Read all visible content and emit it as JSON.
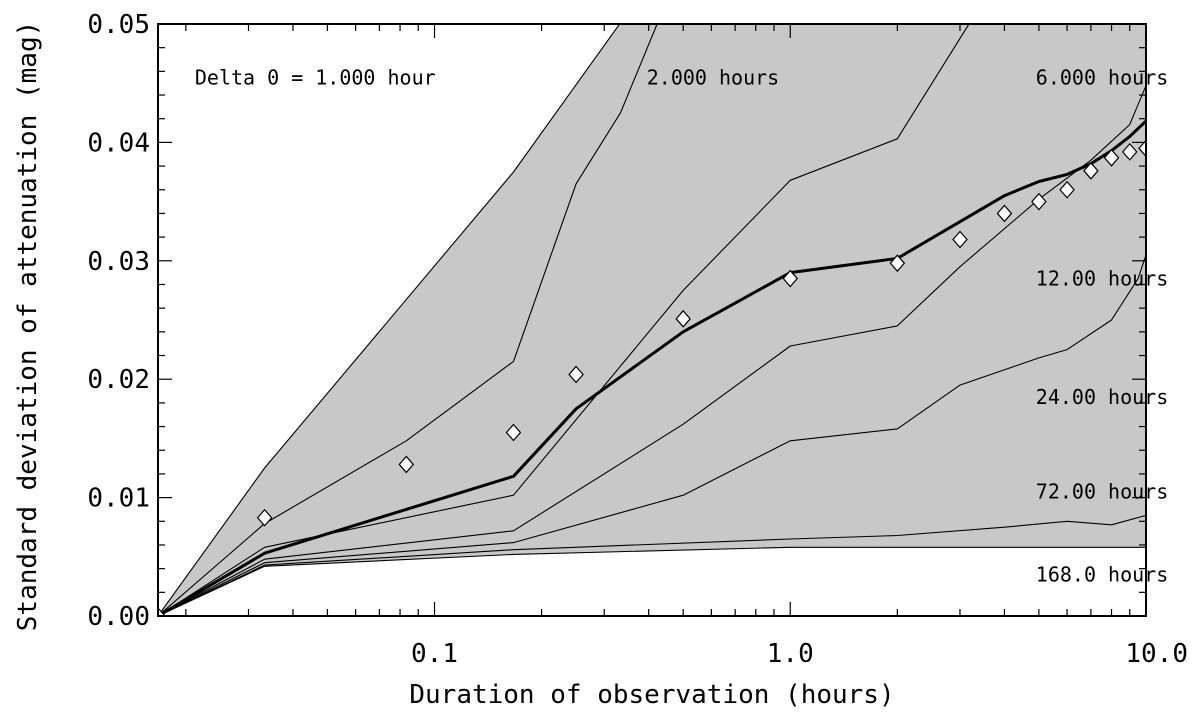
{
  "chart_data": {
    "type": "line",
    "xscale": "log",
    "xlim": [
      0.0167,
      10.0
    ],
    "ylim": [
      0.0,
      0.05
    ],
    "xlabel": "Duration of observation (hours)",
    "ylabel": "Standard deviation of attenuation (mag)",
    "grid": false,
    "x_ticks": [
      {
        "value": 0.1,
        "label": "0.1"
      },
      {
        "value": 1.0,
        "label": "1.0"
      },
      {
        "value": 10.0,
        "label": "10.0"
      }
    ],
    "y_ticks": [
      {
        "value": 0.0,
        "label": "0.00"
      },
      {
        "value": 0.01,
        "label": "0.01"
      },
      {
        "value": 0.02,
        "label": "0.02"
      },
      {
        "value": 0.03,
        "label": "0.03"
      },
      {
        "value": 0.04,
        "label": "0.04"
      },
      {
        "value": 0.05,
        "label": "0.05"
      }
    ],
    "shaded_band": {
      "color": "#c8c8c8",
      "upper": [
        [
          0.0167,
          0.0
        ],
        [
          0.0333,
          0.0125
        ],
        [
          0.1667,
          0.0375
        ],
        [
          0.37,
          0.052
        ]
      ],
      "lower": [
        [
          0.0167,
          0.0
        ],
        [
          0.0333,
          0.0042
        ],
        [
          0.1667,
          0.0052
        ],
        [
          1.0,
          0.0058
        ],
        [
          10.0,
          0.0058
        ]
      ]
    },
    "series": [
      {
        "name": "Delta 0 = 1.000 hour",
        "style": "thin",
        "points": [
          [
            0.0167,
            0.0
          ],
          [
            0.0333,
            0.0125
          ],
          [
            0.1667,
            0.0375
          ],
          [
            0.37,
            0.052
          ]
        ]
      },
      {
        "name": "2.000 hours",
        "style": "thin",
        "points": [
          [
            0.0167,
            0.0
          ],
          [
            0.0333,
            0.0078
          ],
          [
            0.0833,
            0.0148
          ],
          [
            0.1667,
            0.0215
          ],
          [
            0.25,
            0.0365
          ],
          [
            0.3333,
            0.0425
          ],
          [
            0.45,
            0.052
          ]
        ]
      },
      {
        "name": "6.000 hours",
        "style": "thin",
        "points": [
          [
            0.0167,
            0.0
          ],
          [
            0.0333,
            0.0058
          ],
          [
            0.1667,
            0.0102
          ],
          [
            0.5,
            0.0275
          ],
          [
            1.0,
            0.0368
          ],
          [
            2.0,
            0.0403
          ],
          [
            3.5,
            0.052
          ]
        ]
      },
      {
        "name": "12.00 hours",
        "style": "thin",
        "points": [
          [
            0.0167,
            0.0
          ],
          [
            0.0333,
            0.0048
          ],
          [
            0.1667,
            0.0072
          ],
          [
            0.5,
            0.0162
          ],
          [
            1.0,
            0.0228
          ],
          [
            2.0,
            0.0245
          ],
          [
            3.0,
            0.0295
          ],
          [
            5.0,
            0.0352
          ],
          [
            7.0,
            0.0385
          ],
          [
            9.0,
            0.0415
          ],
          [
            10.0,
            0.0448
          ]
        ]
      },
      {
        "name": "24.00 hours",
        "style": "thin",
        "points": [
          [
            0.0167,
            0.0
          ],
          [
            0.0333,
            0.0045
          ],
          [
            0.1667,
            0.0062
          ],
          [
            0.5,
            0.0102
          ],
          [
            1.0,
            0.0148
          ],
          [
            2.0,
            0.0158
          ],
          [
            3.0,
            0.0195
          ],
          [
            5.0,
            0.0218
          ],
          [
            6.0,
            0.0225
          ],
          [
            8.0,
            0.025
          ],
          [
            9.5,
            0.0285
          ],
          [
            10.0,
            0.0305
          ]
        ]
      },
      {
        "name": "72.00 hours",
        "style": "thin",
        "points": [
          [
            0.0167,
            0.0
          ],
          [
            0.0333,
            0.0043
          ],
          [
            0.1667,
            0.0056
          ],
          [
            1.0,
            0.0065
          ],
          [
            2.0,
            0.0068
          ],
          [
            4.0,
            0.0075
          ],
          [
            6.0,
            0.008
          ],
          [
            8.0,
            0.0077
          ],
          [
            10.0,
            0.0085
          ]
        ]
      },
      {
        "name": "168.0 hours",
        "style": "thin",
        "points": [
          [
            0.0167,
            0.0
          ],
          [
            0.0333,
            0.0042
          ],
          [
            0.1667,
            0.0052
          ],
          [
            1.0,
            0.0058
          ],
          [
            10.0,
            0.0058
          ]
        ]
      },
      {
        "name": "",
        "style": "thick",
        "points": [
          [
            0.0167,
            0.0
          ],
          [
            0.0333,
            0.0053
          ],
          [
            0.1667,
            0.0118
          ],
          [
            0.25,
            0.0175
          ],
          [
            0.5,
            0.024
          ],
          [
            1.0,
            0.029
          ],
          [
            2.0,
            0.0302
          ],
          [
            3.0,
            0.0333
          ],
          [
            4.0,
            0.0355
          ],
          [
            5.0,
            0.0367
          ],
          [
            6.0,
            0.0373
          ],
          [
            7.0,
            0.0382
          ],
          [
            8.0,
            0.0393
          ],
          [
            9.0,
            0.0405
          ],
          [
            10.0,
            0.0418
          ]
        ]
      }
    ],
    "markers": {
      "shape": "diamond",
      "points": [
        [
          0.0167,
          0.0
        ],
        [
          0.0333,
          0.0083
        ],
        [
          0.0833,
          0.0128
        ],
        [
          0.1667,
          0.0155
        ],
        [
          0.25,
          0.0204
        ],
        [
          0.5,
          0.0251
        ],
        [
          1.0,
          0.0285
        ],
        [
          2.0,
          0.0298
        ],
        [
          3.0,
          0.0318
        ],
        [
          4.0,
          0.034
        ],
        [
          5.0,
          0.035
        ],
        [
          6.0,
          0.036
        ],
        [
          7.0,
          0.0376
        ],
        [
          8.0,
          0.0387
        ],
        [
          9.0,
          0.0392
        ],
        [
          10.0,
          0.0395
        ]
      ]
    },
    "annotations": [
      {
        "text": "Delta 0 = 1.000 hour",
        "x": 0.0212,
        "y": 0.0455
      },
      {
        "text": "2.000 hours",
        "x": 0.395,
        "y": 0.0455
      },
      {
        "text": "6.000 hours",
        "x": 4.9,
        "y": 0.0455
      },
      {
        "text": "12.00 hours",
        "x": 4.9,
        "y": 0.0285
      },
      {
        "text": "24.00 hours",
        "x": 4.9,
        "y": 0.0185
      },
      {
        "text": "72.00 hours",
        "x": 4.9,
        "y": 0.0105
      },
      {
        "text": "168.0 hours",
        "x": 4.9,
        "y": 0.0035
      }
    ]
  }
}
